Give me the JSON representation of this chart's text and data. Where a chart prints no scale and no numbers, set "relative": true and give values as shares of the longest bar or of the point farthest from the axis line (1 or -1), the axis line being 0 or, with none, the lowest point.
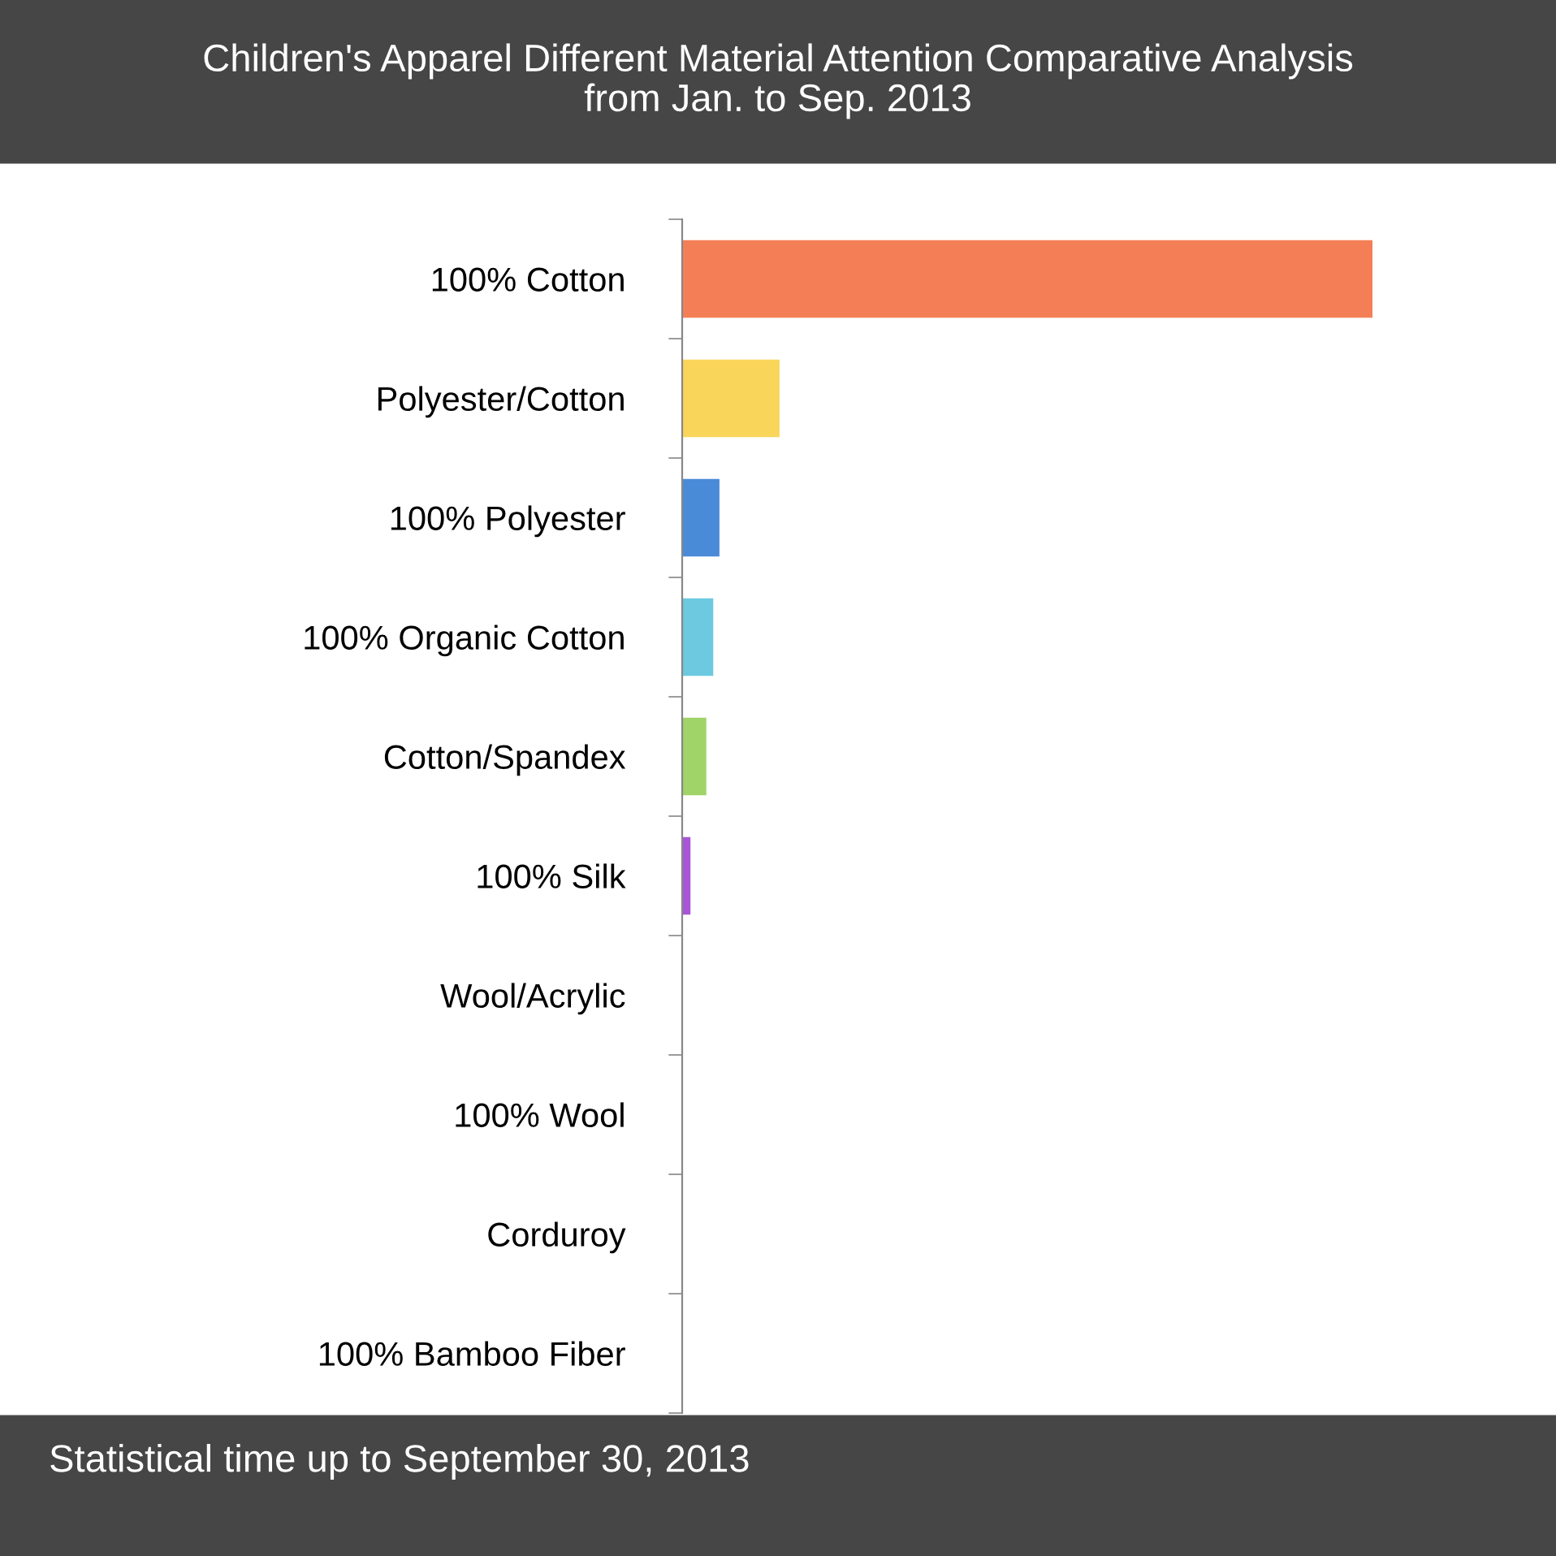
{
  "chart_data": {
    "type": "bar",
    "orientation": "horizontal",
    "relative": true,
    "title": "Children's Apparel Different Material Attention Comparative Analysis\nfrom Jan. to Sep. 2013",
    "categories": [
      "100% Cotton",
      "Polyester/Cotton",
      "100% Polyester",
      "100% Organic Cotton",
      "Cotton/Spandex",
      "100% Silk",
      "Wool/Acrylic",
      "100% Wool",
      "Corduroy",
      "100% Bamboo Fiber"
    ],
    "values": [
      1,
      0.141,
      0.054,
      0.045,
      0.035,
      0.012,
      0,
      0,
      0,
      0
    ],
    "colors": [
      "#f47f56",
      "#f9d55a",
      "#4a8bd8",
      "#6cc9df",
      "#a0d468",
      "#a855d8",
      "#888888",
      "#888888",
      "#888888",
      "#888888"
    ],
    "annotations": [
      "Statistical time up to September 30, 2013"
    ],
    "grid": false,
    "legend": false
  }
}
